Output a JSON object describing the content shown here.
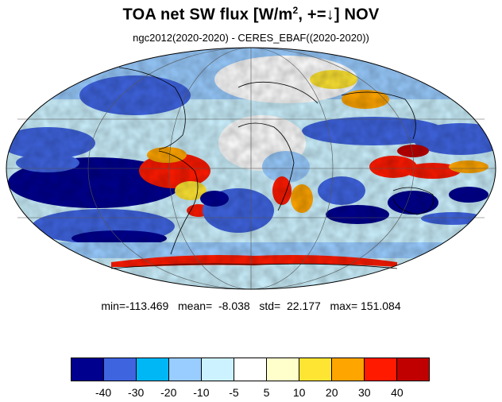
{
  "title": {
    "main": "TOA net SW flux [W/m",
    "sup": "2",
    "rest": ", +=↓]  NOV"
  },
  "subtitle": "ngc2012(2020-2020) - CERES_EBAF((2020-2020))",
  "stats": {
    "min_label": "min=",
    "min": "-113.469",
    "mean_label": "mean=",
    "mean": "-8.038",
    "std_label": "std=",
    "std": "22.177",
    "max_label": "max=",
    "max": "151.084"
  },
  "colorbar": {
    "colors": [
      "#00008f",
      "#3f64e0",
      "#00b7f5",
      "#99ccff",
      "#ccf2ff",
      "#ffffff",
      "#ffffcc",
      "#ffe533",
      "#ffa500",
      "#ff1a00",
      "#c00000"
    ],
    "ticks": [
      "-40",
      "-30",
      "-20",
      "-10",
      "-5",
      "5",
      "10",
      "20",
      "30",
      "40"
    ]
  },
  "map": {
    "projection": "mollweide",
    "features": [
      {
        "id": "east-pacific-deep-blue",
        "color": "#00008f"
      },
      {
        "id": "south-atlantic-blue",
        "color": "#3f64e0"
      },
      {
        "id": "south-america-red",
        "color": "#ff1a00"
      },
      {
        "id": "indonesia-red",
        "color": "#ff1a00"
      },
      {
        "id": "antarctic-coast-red",
        "color": "#ff1a00"
      },
      {
        "id": "australia-blue",
        "color": "#00008f"
      }
    ]
  }
}
